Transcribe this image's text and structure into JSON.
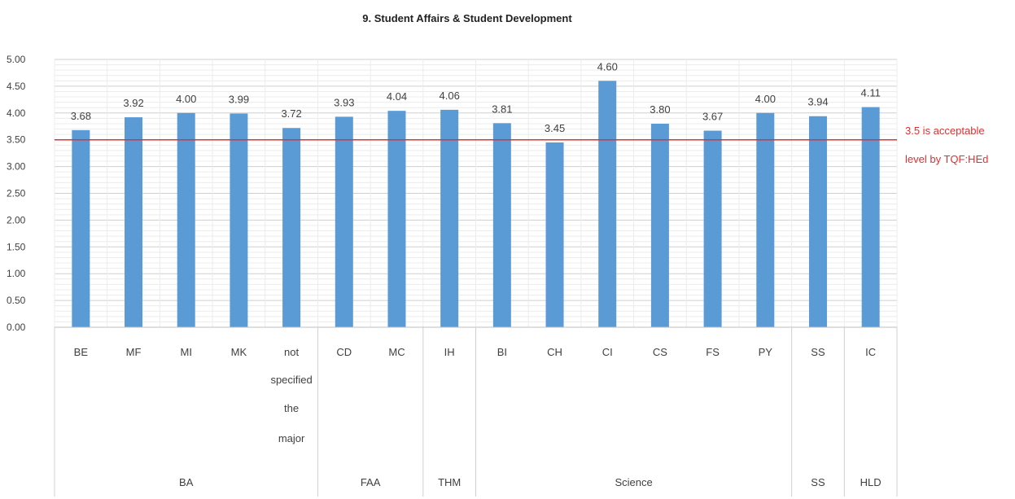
{
  "chart_data": {
    "type": "bar",
    "title": "9. Student Affairs  & Student Development",
    "xlabel": "",
    "ylabel": "",
    "ylim": [
      0,
      5
    ],
    "y_ticks": [
      "0.00",
      "0.50",
      "1.00",
      "1.50",
      "2.00",
      "2.50",
      "3.00",
      "3.50",
      "4.00",
      "4.50",
      "5.00"
    ],
    "categories": [
      "BE",
      "MF",
      "MI",
      "MK",
      "not specified the major",
      "CD",
      "MC",
      "IH",
      "BI",
      "CH",
      "CI",
      "CS",
      "FS",
      "PY",
      "SS",
      "IC"
    ],
    "category_label_lines": [
      [
        "BE"
      ],
      [
        "MF"
      ],
      [
        "MI"
      ],
      [
        "MK"
      ],
      [
        "not",
        "specified",
        "the",
        "major"
      ],
      [
        "CD"
      ],
      [
        "MC"
      ],
      [
        "IH"
      ],
      [
        "BI"
      ],
      [
        "CH"
      ],
      [
        "CI"
      ],
      [
        "CS"
      ],
      [
        "FS"
      ],
      [
        "PY"
      ],
      [
        "SS"
      ],
      [
        "IC"
      ]
    ],
    "values": [
      3.68,
      3.92,
      4.0,
      3.99,
      3.72,
      3.93,
      4.04,
      4.06,
      3.81,
      3.45,
      4.6,
      3.8,
      3.67,
      4.0,
      3.94,
      4.11
    ],
    "value_labels": [
      "3.68",
      "3.92",
      "4.00",
      "3.99",
      "3.72",
      "3.93",
      "4.04",
      "4.06",
      "3.81",
      "3.45",
      "4.60",
      "3.80",
      "3.67",
      "4.00",
      "3.94",
      "4.11"
    ],
    "groups": [
      {
        "name": "BA",
        "count": 5
      },
      {
        "name": "FAA",
        "count": 2
      },
      {
        "name": "THM",
        "count": 1
      },
      {
        "name": "Science",
        "count": 6
      },
      {
        "name": "SS",
        "count": 1
      },
      {
        "name": "HLD",
        "count": 1
      }
    ],
    "reference_line": {
      "value": 3.5,
      "label_lines": [
        "3.5 is acceptable",
        "level by TQF:HEd"
      ]
    },
    "colors": {
      "bar": "#5b9bd5",
      "reference": "#e03030",
      "grid": "#d9d9d9",
      "text": "#404040"
    },
    "grid": true,
    "legend": "none"
  }
}
